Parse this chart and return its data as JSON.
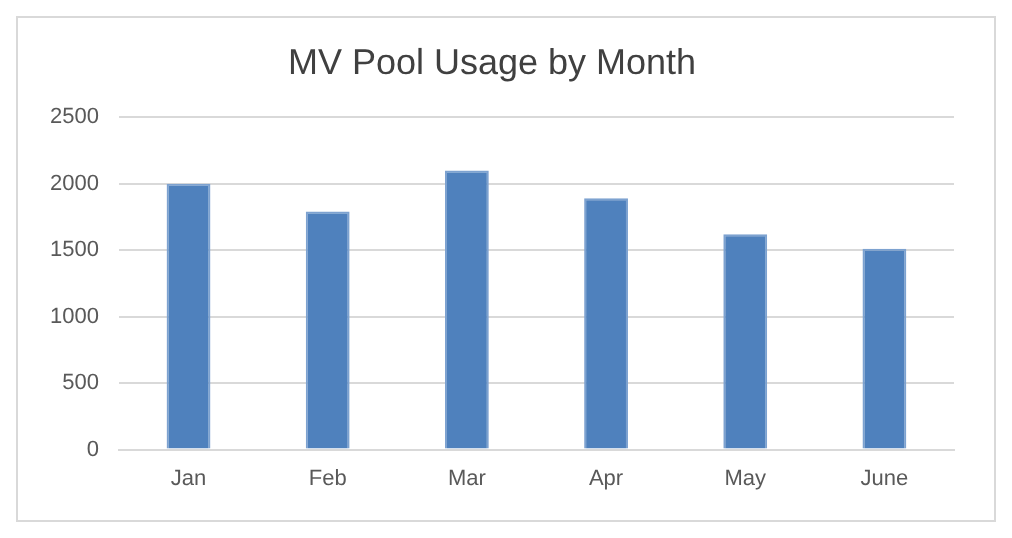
{
  "chart_data": {
    "type": "bar",
    "title": "MV Pool Usage by Month",
    "categories": [
      "Jan",
      "Feb",
      "Mar",
      "Apr",
      "May",
      "June"
    ],
    "values": [
      2000,
      1790,
      2100,
      1890,
      1620,
      1510
    ],
    "color": "#4f81bd",
    "ylim": [
      0,
      2500
    ],
    "yticks": [
      0,
      500,
      1000,
      1500,
      2000,
      2500
    ],
    "grid": "y",
    "legend": false
  }
}
